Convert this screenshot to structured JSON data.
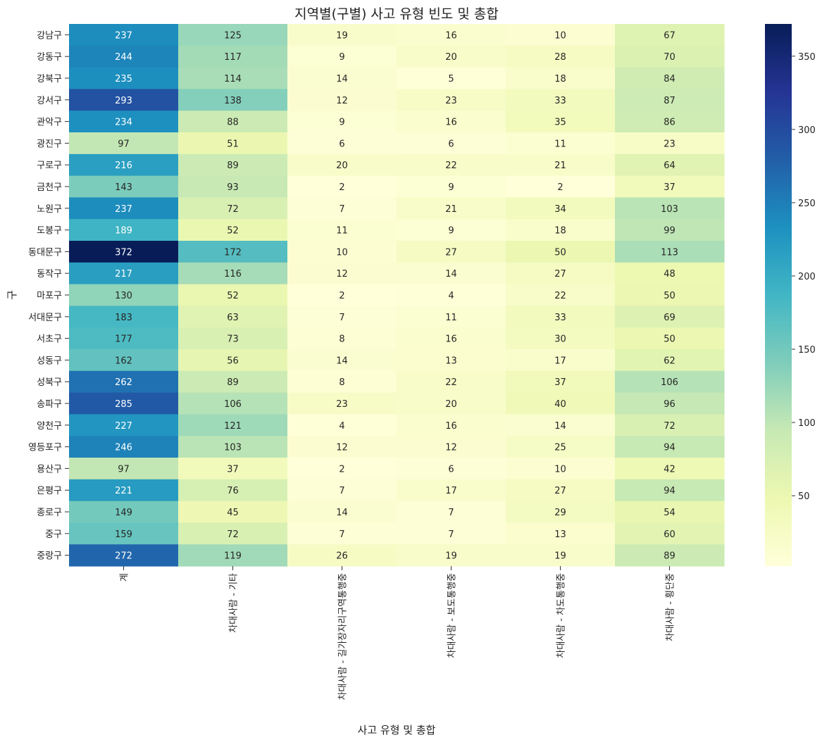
{
  "chart_data": {
    "type": "heatmap",
    "title": "지역별(구별) 사고 유형 빈도 및 총합",
    "xlabel": "사고 유형 및 총합",
    "ylabel": "구",
    "columns": [
      "계",
      "차대사람 - 기타",
      "차대사람 - 길가장자리구역통행중",
      "차대사람 - 보도통행중",
      "차대사람 - 차도통행중",
      "차대사람 - 횡단중"
    ],
    "rows": [
      "강남구",
      "강동구",
      "강북구",
      "강서구",
      "관악구",
      "광진구",
      "구로구",
      "금천구",
      "노원구",
      "도봉구",
      "동대문구",
      "동작구",
      "마포구",
      "서대문구",
      "서초구",
      "성동구",
      "성북구",
      "송파구",
      "양천구",
      "영등포구",
      "용산구",
      "은평구",
      "종로구",
      "중구",
      "중랑구"
    ],
    "values": [
      [
        237,
        125,
        19,
        16,
        10,
        67
      ],
      [
        244,
        117,
        9,
        20,
        28,
        70
      ],
      [
        235,
        114,
        14,
        5,
        18,
        84
      ],
      [
        293,
        138,
        12,
        23,
        33,
        87
      ],
      [
        234,
        88,
        9,
        16,
        35,
        86
      ],
      [
        97,
        51,
        6,
        6,
        11,
        23
      ],
      [
        216,
        89,
        20,
        22,
        21,
        64
      ],
      [
        143,
        93,
        2,
        9,
        2,
        37
      ],
      [
        237,
        72,
        7,
        21,
        34,
        103
      ],
      [
        189,
        52,
        11,
        9,
        18,
        99
      ],
      [
        372,
        172,
        10,
        27,
        50,
        113
      ],
      [
        217,
        116,
        12,
        14,
        27,
        48
      ],
      [
        130,
        52,
        2,
        4,
        22,
        50
      ],
      [
        183,
        63,
        7,
        11,
        33,
        69
      ],
      [
        177,
        73,
        8,
        16,
        30,
        50
      ],
      [
        162,
        56,
        14,
        13,
        17,
        62
      ],
      [
        262,
        89,
        8,
        22,
        37,
        106
      ],
      [
        285,
        106,
        23,
        20,
        40,
        96
      ],
      [
        227,
        121,
        4,
        16,
        14,
        72
      ],
      [
        246,
        103,
        12,
        12,
        25,
        94
      ],
      [
        97,
        37,
        2,
        6,
        10,
        42
      ],
      [
        221,
        76,
        7,
        17,
        27,
        94
      ],
      [
        149,
        45,
        14,
        7,
        29,
        54
      ],
      [
        159,
        72,
        7,
        7,
        13,
        60
      ],
      [
        272,
        119,
        26,
        19,
        19,
        89
      ]
    ],
    "colormap": "YlGnBu",
    "color_range": [
      2,
      372
    ],
    "colorbar_ticks": [
      50,
      100,
      150,
      200,
      250,
      300,
      350
    ]
  }
}
